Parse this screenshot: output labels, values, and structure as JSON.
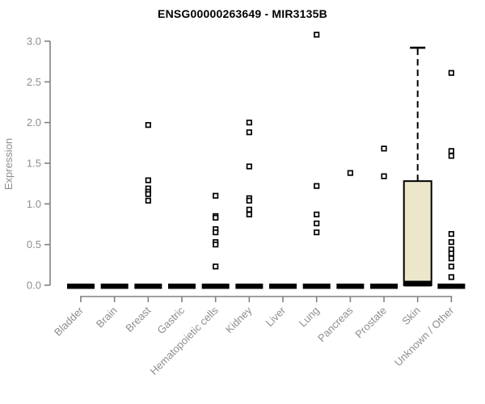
{
  "title": "ENSG00000263649 - MIR3135B",
  "chart_data": {
    "type": "boxplot",
    "title": "ENSG00000263649 - MIR3135B",
    "xlabel": "",
    "ylabel": "Expression",
    "ylim": [
      0.0,
      3.0
    ],
    "yticks": [
      0.0,
      0.5,
      1.0,
      1.5,
      2.0,
      2.5,
      3.0
    ],
    "grid": "off",
    "legend": "none",
    "categories": [
      "Bladder",
      "Brain",
      "Breast",
      "Gastric",
      "Hematopoietic cells",
      "Kidney",
      "Liver",
      "Lung",
      "Pancreas",
      "Prostate",
      "Skin",
      "Unknown / Other"
    ],
    "series": [
      {
        "label": "Bladder",
        "q1": 0,
        "median": 0,
        "q3": 0,
        "whisker_low": 0,
        "whisker_high": 0,
        "outliers": []
      },
      {
        "label": "Brain",
        "q1": 0,
        "median": 0,
        "q3": 0,
        "whisker_low": 0,
        "whisker_high": 0,
        "outliers": []
      },
      {
        "label": "Breast",
        "q1": 0,
        "median": 0,
        "q3": 0,
        "whisker_low": 0,
        "whisker_high": 0,
        "outliers": [
          1.97,
          1.29,
          1.19,
          1.15,
          1.12,
          1.04
        ]
      },
      {
        "label": "Gastric",
        "q1": 0,
        "median": 0,
        "q3": 0,
        "whisker_low": 0,
        "whisker_high": 0,
        "outliers": []
      },
      {
        "label": "Hematopoietic cells",
        "q1": 0,
        "median": 0,
        "q3": 0,
        "whisker_low": 0,
        "whisker_high": 0,
        "outliers": [
          1.1,
          0.85,
          0.83,
          0.69,
          0.65,
          0.53,
          0.5,
          0.23
        ]
      },
      {
        "label": "Kidney",
        "q1": 0,
        "median": 0,
        "q3": 0,
        "whisker_low": 0,
        "whisker_high": 0,
        "outliers": [
          2.0,
          1.88,
          1.46,
          1.07,
          1.04,
          0.93,
          0.87
        ]
      },
      {
        "label": "Liver",
        "q1": 0,
        "median": 0,
        "q3": 0,
        "whisker_low": 0,
        "whisker_high": 0,
        "outliers": []
      },
      {
        "label": "Lung",
        "q1": 0,
        "median": 0,
        "q3": 0,
        "whisker_low": 0,
        "whisker_high": 0,
        "outliers": [
          3.08,
          1.22,
          0.87,
          0.76,
          0.65
        ]
      },
      {
        "label": "Pancreas",
        "q1": 0,
        "median": 0,
        "q3": 0,
        "whisker_low": 0,
        "whisker_high": 0,
        "outliers": [
          1.38
        ]
      },
      {
        "label": "Prostate",
        "q1": 0,
        "median": 0,
        "q3": 0,
        "whisker_low": 0,
        "whisker_high": 0,
        "outliers": [
          1.68,
          1.34
        ]
      },
      {
        "label": "Skin",
        "q1": 0,
        "median": 0.02,
        "q3": 1.28,
        "whisker_low": 0,
        "whisker_high": 2.92,
        "outliers": []
      },
      {
        "label": "Unknown / Other",
        "q1": 0,
        "median": 0,
        "q3": 0,
        "whisker_low": 0,
        "whisker_high": 0,
        "outliers": [
          2.61,
          1.65,
          1.59,
          0.63,
          0.53,
          0.44,
          0.39,
          0.33,
          0.23,
          0.1
        ]
      }
    ],
    "colors": {
      "title": "#000000",
      "axis": "#818181",
      "tick_label": "#8e8e8e",
      "point": "#000000",
      "box_fill": "#ece7cb",
      "box_border": "#000000",
      "collapsed_box": "#000000",
      "background": "#ffffff"
    }
  }
}
